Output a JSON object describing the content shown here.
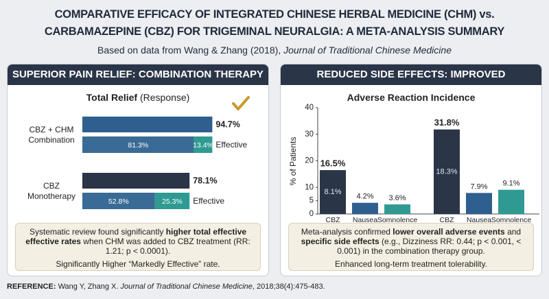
{
  "header": {
    "title": "COMPARATIVE EFFICACY OF INTEGRATED CHINESE HERBAL MEDICINE (CHM) vs.\nCARBAMAZEPINE (CBZ) FOR TRIGEMINAL NEURALGIA: A META-ANALYSIS SUMMARY",
    "subtitle": [
      {
        "text": "Based on data from Wang & Zhang (2018), "
      },
      {
        "text": "Journal of Traditional Chinese Medicine",
        "italic": true
      }
    ]
  },
  "chart_data": [
    {
      "type": "bar",
      "orientation": "horizontal",
      "panel_title": "SUPERIOR PAIN RELIEF: COMBINATION THERAPY",
      "title": [
        {
          "text": "Total Relief",
          "bold": true
        },
        {
          "text": " (Response)"
        }
      ],
      "categories": [
        "CBZ + CHM\nCombination",
        "CBZ\nMonotherapy"
      ],
      "total": {
        "values": [
          94.7,
          78.1
        ],
        "value_labels": [
          "94.7%",
          "78.1%"
        ],
        "colors": [
          "#2f5f8f",
          "#2b3548"
        ]
      },
      "series": [
        {
          "color": "#3a6b96",
          "values": [
            81.3,
            52.8
          ],
          "value_labels": [
            "81.3%",
            "52.8%"
          ]
        },
        {
          "name": "Effective",
          "color": "#2f9a91",
          "values": [
            13.4,
            25.3
          ],
          "value_labels": [
            "13.4%",
            "25.3%"
          ]
        }
      ],
      "note": {
        "parts": [
          {
            "text": "Systematic review found significantly "
          },
          {
            "text": "higher total effective effective rates",
            "bold": true
          },
          {
            "text": " when CHM was added to CBZ treatment (RR: 1.21; p < 0.0001)."
          }
        ],
        "footer": "Significantly Higher “Markedly Effective” rate."
      }
    },
    {
      "type": "bar",
      "orientation": "vertical",
      "panel_title": "REDUCED SIDE EFFECTS: IMPROVED TOLERABILITY",
      "title": [
        {
          "text": "Adverse Reaction Incidence",
          "bold": true
        }
      ],
      "y_label": "% of Patients",
      "categories": [
        "CBZ",
        "Nausea",
        "Somnolence",
        "CBZ",
        "Nausea",
        "Somnolence"
      ],
      "values": [
        16.5,
        4.2,
        3.6,
        31.8,
        7.9,
        9.1
      ],
      "value_labels": [
        "16.5%",
        "4.2%",
        "3.6%",
        "31.8%",
        "7.9%",
        "9.1%"
      ],
      "bold_value_labels": [
        true,
        false,
        false,
        true,
        false,
        false
      ],
      "inner_labels": [
        "8.1%",
        null,
        null,
        "18.3%",
        null,
        null
      ],
      "colors": [
        "#2b3548",
        "#2f5f8f",
        "#2f9a91",
        "#2b3548",
        "#2f5f8f",
        "#2f9a91"
      ],
      "ylim": [
        0,
        40
      ],
      "yticks": [
        0,
        5,
        10,
        20,
        30,
        40
      ],
      "note": {
        "parts": [
          {
            "text": "Meta-analysis confirmed "
          },
          {
            "text": "lower overall adverse events",
            "bold": true
          },
          {
            "text": " and "
          },
          {
            "text": "specific side effects",
            "bold": true
          },
          {
            "text": " (e.g., Dizziness RR: 0.44; p < 0.001, < 0.001) in the combination therapy group."
          }
        ],
        "footer": "Enhanced long-term treatment tolerability."
      }
    }
  ],
  "reference": [
    {
      "text": "REFERENCE:",
      "bold": true
    },
    {
      "text": " Wang Y, Zhang X. "
    },
    {
      "text": "Journal of Traditional Chinese Medicine",
      "italic": true
    },
    {
      "text": ", 2018;38(4):475-483."
    }
  ]
}
